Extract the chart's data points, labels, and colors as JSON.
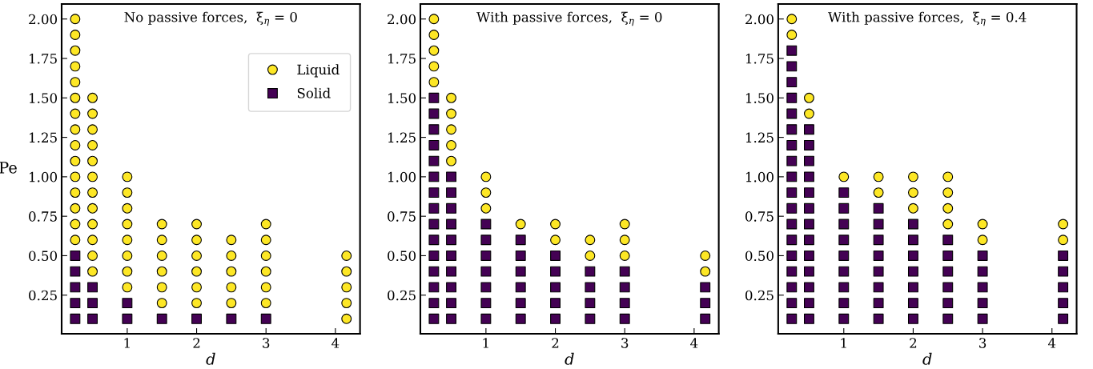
{
  "chart_data": [
    {
      "type": "scatter",
      "title": "No passive forces,  ξ$_{η}$ = 0",
      "xlabel": "d",
      "ylabel": "Pe",
      "xlim": [
        0.055,
        4.355
      ],
      "ylim": [
        0.005,
        2.095
      ],
      "xticks": [
        1,
        2,
        3,
        4
      ],
      "yticks": [
        {
          "value": 0.25,
          "label": "0.25"
        },
        {
          "value": 0.5,
          "label": "0.50"
        },
        {
          "value": 0.75,
          "label": "0.75"
        },
        {
          "value": 1.0,
          "label": "1.00"
        },
        {
          "value": 1.25,
          "label": "1.25"
        },
        {
          "value": 1.5,
          "label": "1.50"
        },
        {
          "value": 1.75,
          "label": "1.75"
        },
        {
          "value": 2.0,
          "label": "2.00"
        }
      ],
      "legend": "top right",
      "series": [
        {
          "name": "Liquid",
          "color": "#fde725",
          "marker": "circle",
          "x": [
            0.25,
            0.25,
            0.25,
            0.25,
            0.25,
            0.25,
            0.25,
            0.25,
            0.25,
            0.25,
            0.25,
            0.25,
            0.25,
            0.25,
            0.25,
            0.5,
            0.5,
            0.5,
            0.5,
            0.5,
            0.5,
            0.5,
            0.5,
            0.5,
            0.5,
            0.5,
            0.5,
            1,
            1,
            1,
            1,
            1,
            1,
            1,
            1,
            1.5,
            1.5,
            1.5,
            1.5,
            1.5,
            1.5,
            2,
            2,
            2,
            2,
            2,
            2,
            2.5,
            2.5,
            2.5,
            2.5,
            2.5,
            3,
            3,
            3,
            3,
            3,
            3,
            4.16,
            4.16,
            4.16,
            4.16,
            4.16
          ],
          "values": [
            0.6,
            0.7,
            0.8,
            0.9,
            1.0,
            1.1,
            1.2,
            1.3,
            1.4,
            1.5,
            1.6,
            1.7,
            1.8,
            1.9,
            2.0,
            0.4,
            0.5,
            0.6,
            0.7,
            0.8,
            0.9,
            1.0,
            1.1,
            1.2,
            1.3,
            1.4,
            1.5,
            0.3,
            0.4,
            0.5,
            0.6,
            0.7,
            0.8,
            0.9,
            1.0,
            0.2,
            0.3,
            0.4,
            0.5,
            0.6,
            0.7,
            0.2,
            0.3,
            0.4,
            0.5,
            0.6,
            0.7,
            0.2,
            0.3,
            0.4,
            0.5,
            0.6,
            0.2,
            0.3,
            0.4,
            0.5,
            0.6,
            0.7,
            0.1,
            0.2,
            0.3,
            0.4,
            0.5
          ]
        },
        {
          "name": "Solid",
          "color": "#440154",
          "marker": "square",
          "x": [
            0.25,
            0.25,
            0.25,
            0.25,
            0.25,
            0.5,
            0.5,
            0.5,
            1,
            1,
            1.5,
            2,
            2.5,
            3
          ],
          "values": [
            0.1,
            0.2,
            0.3,
            0.4,
            0.5,
            0.1,
            0.2,
            0.3,
            0.1,
            0.2,
            0.1,
            0.1,
            0.1,
            0.1
          ]
        }
      ]
    },
    {
      "type": "scatter",
      "title": "With passive forces,  ξ$_{η}$ = 0",
      "xlabel": "d",
      "xlim": [
        0.055,
        4.355
      ],
      "ylim": [
        0.005,
        2.095
      ],
      "xticks": [
        1,
        2,
        3,
        4
      ],
      "yticks": [
        {
          "value": 0.25,
          "label": "0.25"
        },
        {
          "value": 0.5,
          "label": "0.50"
        },
        {
          "value": 0.75,
          "label": "0.75"
        },
        {
          "value": 1.0,
          "label": "1.00"
        },
        {
          "value": 1.25,
          "label": "1.25"
        },
        {
          "value": 1.5,
          "label": "1.50"
        },
        {
          "value": 1.75,
          "label": "1.75"
        },
        {
          "value": 2.0,
          "label": "2.00"
        }
      ],
      "series": [
        {
          "color": "#fde725",
          "marker": "circle",
          "x": [
            0.25,
            0.25,
            0.25,
            0.25,
            0.25,
            0.5,
            0.5,
            0.5,
            0.5,
            0.5,
            1,
            1,
            1,
            1.5,
            2,
            2,
            2.5,
            2.5,
            3,
            3,
            3,
            4.16,
            4.16
          ],
          "values": [
            1.6,
            1.7,
            1.8,
            1.9,
            2.0,
            1.1,
            1.2,
            1.3,
            1.4,
            1.5,
            0.8,
            0.9,
            1.0,
            0.7,
            0.6,
            0.7,
            0.5,
            0.6,
            0.5,
            0.6,
            0.7,
            0.4,
            0.5
          ]
        },
        {
          "color": "#440154",
          "marker": "square",
          "x": [
            0.25,
            0.25,
            0.25,
            0.25,
            0.25,
            0.25,
            0.25,
            0.25,
            0.25,
            0.25,
            0.25,
            0.25,
            0.25,
            0.25,
            0.25,
            0.5,
            0.5,
            0.5,
            0.5,
            0.5,
            0.5,
            0.5,
            0.5,
            0.5,
            0.5,
            1,
            1,
            1,
            1,
            1,
            1,
            1,
            1.5,
            1.5,
            1.5,
            1.5,
            1.5,
            1.5,
            2,
            2,
            2,
            2,
            2,
            2.5,
            2.5,
            2.5,
            2.5,
            3,
            3,
            3,
            3,
            4.16,
            4.16,
            4.16
          ],
          "values": [
            0.1,
            0.2,
            0.3,
            0.4,
            0.5,
            0.6,
            0.7,
            0.8,
            0.9,
            1.0,
            1.1,
            1.2,
            1.3,
            1.4,
            1.5,
            0.1,
            0.2,
            0.3,
            0.4,
            0.5,
            0.6,
            0.7,
            0.8,
            0.9,
            1.0,
            0.1,
            0.2,
            0.3,
            0.4,
            0.5,
            0.6,
            0.7,
            0.1,
            0.2,
            0.3,
            0.4,
            0.5,
            0.6,
            0.1,
            0.2,
            0.3,
            0.4,
            0.5,
            0.1,
            0.2,
            0.3,
            0.4,
            0.1,
            0.2,
            0.3,
            0.4,
            0.1,
            0.2,
            0.3
          ]
        }
      ]
    },
    {
      "type": "scatter",
      "title": "With passive forces,  ξ$_{η}$ = 0.4",
      "xlabel": "d",
      "xlim": [
        0.055,
        4.355
      ],
      "ylim": [
        0.005,
        2.095
      ],
      "xticks": [
        1,
        2,
        3,
        4
      ],
      "yticks": [
        {
          "value": 0.25,
          "label": "0.25"
        },
        {
          "value": 0.5,
          "label": "0.50"
        },
        {
          "value": 0.75,
          "label": "0.75"
        },
        {
          "value": 1.0,
          "label": "1.00"
        },
        {
          "value": 1.25,
          "label": "1.25"
        },
        {
          "value": 1.5,
          "label": "1.50"
        },
        {
          "value": 1.75,
          "label": "1.75"
        },
        {
          "value": 2.0,
          "label": "2.00"
        }
      ],
      "series": [
        {
          "color": "#fde725",
          "marker": "circle",
          "x": [
            0.25,
            0.25,
            0.5,
            0.5,
            1,
            1.5,
            1.5,
            2,
            2,
            2,
            2.5,
            2.5,
            2.5,
            2.5,
            3,
            3,
            4.16,
            4.16
          ],
          "values": [
            1.9,
            2.0,
            1.4,
            1.5,
            1.0,
            0.9,
            1.0,
            0.8,
            0.9,
            1.0,
            0.7,
            0.8,
            0.9,
            1.0,
            0.6,
            0.7,
            0.6,
            0.7
          ]
        },
        {
          "color": "#440154",
          "marker": "square",
          "x": [
            0.25,
            0.25,
            0.25,
            0.25,
            0.25,
            0.25,
            0.25,
            0.25,
            0.25,
            0.25,
            0.25,
            0.25,
            0.25,
            0.25,
            0.25,
            0.25,
            0.25,
            0.25,
            0.5,
            0.5,
            0.5,
            0.5,
            0.5,
            0.5,
            0.5,
            0.5,
            0.5,
            0.5,
            0.5,
            0.5,
            0.5,
            1,
            1,
            1,
            1,
            1,
            1,
            1,
            1,
            1,
            1.5,
            1.5,
            1.5,
            1.5,
            1.5,
            1.5,
            1.5,
            1.5,
            2,
            2,
            2,
            2,
            2,
            2,
            2,
            2.5,
            2.5,
            2.5,
            2.5,
            2.5,
            2.5,
            3,
            3,
            3,
            3,
            3,
            4.16,
            4.16,
            4.16,
            4.16,
            4.16
          ],
          "values": [
            0.1,
            0.2,
            0.3,
            0.4,
            0.5,
            0.6,
            0.7,
            0.8,
            0.9,
            1.0,
            1.1,
            1.2,
            1.3,
            1.4,
            1.5,
            1.6,
            1.7,
            1.8,
            0.1,
            0.2,
            0.3,
            0.4,
            0.5,
            0.6,
            0.7,
            0.8,
            0.9,
            1.0,
            1.1,
            1.2,
            1.3,
            0.1,
            0.2,
            0.3,
            0.4,
            0.5,
            0.6,
            0.7,
            0.8,
            0.9,
            0.1,
            0.2,
            0.3,
            0.4,
            0.5,
            0.6,
            0.7,
            0.8,
            0.1,
            0.2,
            0.3,
            0.4,
            0.5,
            0.6,
            0.7,
            0.1,
            0.2,
            0.3,
            0.4,
            0.5,
            0.6,
            0.1,
            0.2,
            0.3,
            0.4,
            0.5,
            0.1,
            0.2,
            0.3,
            0.4,
            0.5
          ]
        }
      ]
    }
  ]
}
